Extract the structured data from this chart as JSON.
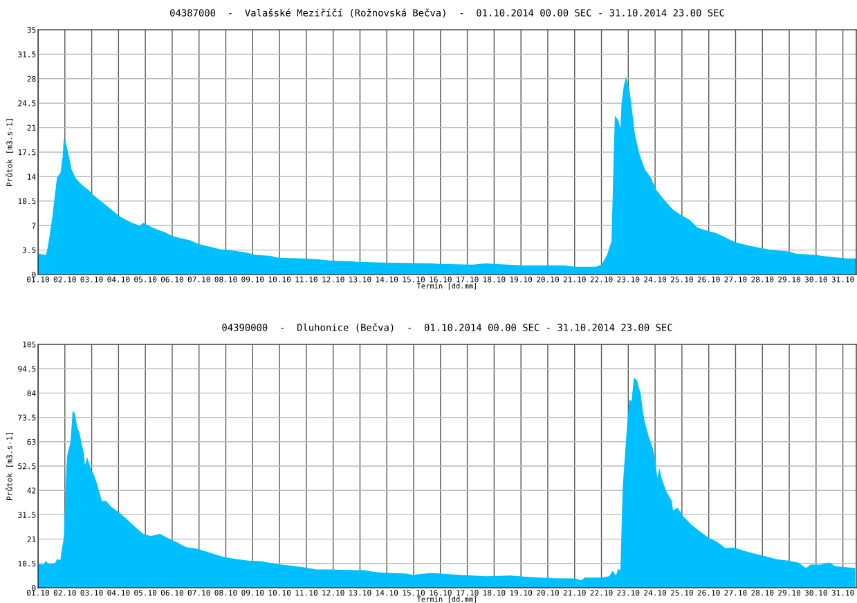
{
  "chart_data": [
    {
      "type": "area",
      "title": "04387000  -  Valašské Meziříčí (Rožnovská Bečva)  -  01.10.2014 00.00 SEC - 31.10.2014 23.00 SEC",
      "xlabel": "Termín [dd.mm]",
      "ylabel": "Průtok [m3.s-1]",
      "grid": true,
      "xlim": [
        "2014-10-01T00:00",
        "2014-10-31T12:00"
      ],
      "ylim": [
        0,
        35
      ],
      "yticks": [
        0,
        3.5,
        7,
        10.5,
        14,
        17.5,
        21,
        24.5,
        28,
        31.5,
        35
      ],
      "xticks": [
        {
          "value": "2014-10-01",
          "label": "01.10"
        },
        {
          "value": "2014-10-02",
          "label": "02.10"
        },
        {
          "value": "2014-10-03",
          "label": "03.10"
        },
        {
          "value": "2014-10-04",
          "label": "04.10"
        },
        {
          "value": "2014-10-05",
          "label": "05.10"
        },
        {
          "value": "2014-10-06",
          "label": "06.10"
        },
        {
          "value": "2014-10-07",
          "label": "07.10"
        },
        {
          "value": "2014-10-08",
          "label": "08.10"
        },
        {
          "value": "2014-10-09",
          "label": "09.10"
        },
        {
          "value": "2014-10-10",
          "label": "10.10"
        },
        {
          "value": "2014-10-11",
          "label": "11.10"
        },
        {
          "value": "2014-10-12",
          "label": "12.10"
        },
        {
          "value": "2014-10-13",
          "label": "13.10"
        },
        {
          "value": "2014-10-14",
          "label": "14.10"
        },
        {
          "value": "2014-10-15",
          "label": "15.10"
        },
        {
          "value": "2014-10-16",
          "label": "16.10"
        },
        {
          "value": "2014-10-17",
          "label": "17.10"
        },
        {
          "value": "2014-10-18",
          "label": "18.10"
        },
        {
          "value": "2014-10-19",
          "label": "19.10"
        },
        {
          "value": "2014-10-20",
          "label": "20.10"
        },
        {
          "value": "2014-10-21",
          "label": "21.10"
        },
        {
          "value": "2014-10-22",
          "label": "22.10"
        },
        {
          "value": "2014-10-23",
          "label": "23.10"
        },
        {
          "value": "2014-10-24",
          "label": "24.10"
        },
        {
          "value": "2014-10-25",
          "label": "25.10"
        },
        {
          "value": "2014-10-26",
          "label": "26.10"
        },
        {
          "value": "2014-10-27",
          "label": "27.10"
        },
        {
          "value": "2014-10-28",
          "label": "28.10"
        },
        {
          "value": "2014-10-29",
          "label": "29.10"
        },
        {
          "value": "2014-10-30",
          "label": "30.10"
        },
        {
          "value": "2014-10-31",
          "label": "31.10"
        }
      ],
      "series": [
        {
          "color": "#00bfff",
          "x": [
            "2014-10-01T00:00",
            "2014-10-01T07:00",
            "2014-10-01T08:00",
            "2014-10-01T10:00",
            "2014-10-01T13:00",
            "2014-10-01T15:00",
            "2014-10-01T17:00",
            "2014-10-01T20:00",
            "2014-10-01T22:00",
            "2014-10-01T23:00",
            "2014-10-02T01:00",
            "2014-10-02T04:00",
            "2014-10-02T06:00",
            "2014-10-02T10:00",
            "2014-10-02T16:00",
            "2014-10-02T21:00",
            "2014-10-03T02:00",
            "2014-10-03T09:00",
            "2014-10-03T19:00",
            "2014-10-04T02:00",
            "2014-10-04T12:00",
            "2014-10-04T19:00",
            "2014-10-04T22:00",
            "2014-10-05T08:00",
            "2014-10-05T18:00",
            "2014-10-06T00:00",
            "2014-10-06T08:00",
            "2014-10-06T16:00",
            "2014-10-06T23:00",
            "2014-10-07T09:00",
            "2014-10-07T19:00",
            "2014-10-08T07:00",
            "2014-10-08T17:00",
            "2014-10-09T03:00",
            "2014-10-09T15:00",
            "2014-10-09T23:00",
            "2014-10-10T21:00",
            "2014-10-11T09:00",
            "2014-10-11T21:00",
            "2014-10-12T17:00",
            "2014-10-12T22:00",
            "2014-10-13T22:00",
            "2014-10-15T16:00",
            "2014-10-16T00:00",
            "2014-10-17T05:00",
            "2014-10-17T17:00",
            "2014-10-18T00:00",
            "2014-10-19T01:00",
            "2014-10-20T14:00",
            "2014-10-21T00:00",
            "2014-10-21T19:00",
            "2014-10-22T00:00",
            "2014-10-22T05:00",
            "2014-10-22T09:00",
            "2014-10-22T11:00",
            "2014-10-22T12:00",
            "2014-10-22T15:00",
            "2014-10-22T17:00",
            "2014-10-22T18:00",
            "2014-10-22T20:00",
            "2014-10-22T22:00",
            "2014-10-22T23:00",
            "2014-10-23T01:00",
            "2014-10-23T03:00",
            "2014-10-23T06:00",
            "2014-10-23T10:00",
            "2014-10-23T15:00",
            "2014-10-23T20:00",
            "2014-10-24T01:00",
            "2014-10-24T08:00",
            "2014-10-24T16:00",
            "2014-10-24T23:00",
            "2014-10-25T07:00",
            "2014-10-25T14:00",
            "2014-10-26T00:00",
            "2014-10-26T07:00",
            "2014-10-26T15:00",
            "2014-10-27T00:00",
            "2014-10-27T13:00",
            "2014-10-27T22:00",
            "2014-10-28T08:00",
            "2014-10-28T23:00",
            "2014-10-29T06:00",
            "2014-10-30T00:00",
            "2014-10-30T09:00",
            "2014-10-31T03:00",
            "2014-10-31T12:00"
          ],
          "values": [
            3.0,
            2.8,
            3.4,
            5.2,
            8.5,
            11.3,
            13.9,
            14.5,
            16.8,
            19.4,
            18.8,
            16.6,
            15.0,
            13.7,
            12.7,
            12.1,
            11.3,
            10.4,
            9.1,
            8.2,
            7.4,
            7.0,
            7.4,
            6.6,
            6.0,
            5.5,
            5.2,
            4.9,
            4.4,
            4.0,
            3.6,
            3.4,
            3.2,
            2.8,
            2.7,
            2.4,
            2.3,
            2.2,
            2.0,
            1.9,
            1.8,
            1.7,
            1.6,
            1.5,
            1.4,
            1.6,
            1.5,
            1.3,
            1.3,
            1.1,
            1.1,
            1.4,
            2.8,
            4.8,
            17.0,
            22.7,
            22.1,
            20.9,
            24.5,
            27.0,
            28.3,
            27.6,
            26.5,
            23.9,
            20.0,
            17.2,
            15.0,
            13.9,
            12.1,
            10.7,
            9.3,
            8.5,
            7.8,
            6.7,
            6.2,
            5.9,
            5.3,
            4.6,
            4.1,
            3.8,
            3.5,
            3.3,
            3.0,
            2.8,
            2.6,
            2.3,
            2.3
          ]
        }
      ]
    },
    {
      "type": "area",
      "title": "04390000  -  Dluhonice (Bečva)  -  01.10.2014 00.00 SEC - 31.10.2014 23.00 SEC",
      "xlabel": "Termín [dd.mm]",
      "ylabel": "Průtok [m3.s-1]",
      "grid": true,
      "xlim": [
        "2014-10-01T00:00",
        "2014-10-31T12:00"
      ],
      "ylim": [
        0,
        105
      ],
      "yticks": [
        0,
        10.5,
        21,
        31.5,
        42,
        52.5,
        63,
        73.5,
        84,
        94.5,
        105
      ],
      "xticks": [
        {
          "value": "2014-10-01",
          "label": "01.10"
        },
        {
          "value": "2014-10-02",
          "label": "02.10"
        },
        {
          "value": "2014-10-03",
          "label": "03.10"
        },
        {
          "value": "2014-10-04",
          "label": "04.10"
        },
        {
          "value": "2014-10-05",
          "label": "05.10"
        },
        {
          "value": "2014-10-06",
          "label": "06.10"
        },
        {
          "value": "2014-10-07",
          "label": "07.10"
        },
        {
          "value": "2014-10-08",
          "label": "08.10"
        },
        {
          "value": "2014-10-09",
          "label": "09.10"
        },
        {
          "value": "2014-10-10",
          "label": "10.10"
        },
        {
          "value": "2014-10-11",
          "label": "11.10"
        },
        {
          "value": "2014-10-12",
          "label": "12.10"
        },
        {
          "value": "2014-10-13",
          "label": "13.10"
        },
        {
          "value": "2014-10-14",
          "label": "14.10"
        },
        {
          "value": "2014-10-15",
          "label": "15.10"
        },
        {
          "value": "2014-10-16",
          "label": "16.10"
        },
        {
          "value": "2014-10-17",
          "label": "17.10"
        },
        {
          "value": "2014-10-18",
          "label": "18.10"
        },
        {
          "value": "2014-10-19",
          "label": "19.10"
        },
        {
          "value": "2014-10-20",
          "label": "20.10"
        },
        {
          "value": "2014-10-21",
          "label": "21.10"
        },
        {
          "value": "2014-10-22",
          "label": "22.10"
        },
        {
          "value": "2014-10-23",
          "label": "23.10"
        },
        {
          "value": "2014-10-24",
          "label": "24.10"
        },
        {
          "value": "2014-10-25",
          "label": "25.10"
        },
        {
          "value": "2014-10-26",
          "label": "26.10"
        },
        {
          "value": "2014-10-27",
          "label": "27.10"
        },
        {
          "value": "2014-10-28",
          "label": "28.10"
        },
        {
          "value": "2014-10-29",
          "label": "29.10"
        },
        {
          "value": "2014-10-30",
          "label": "30.10"
        },
        {
          "value": "2014-10-31",
          "label": "31.10"
        }
      ],
      "series": [
        {
          "color": "#00bfff",
          "x": [
            "2014-10-01T00:00",
            "2014-10-01T05:00",
            "2014-10-01T07:00",
            "2014-10-01T09:00",
            "2014-10-01T15:00",
            "2014-10-01T17:00",
            "2014-10-01T20:00",
            "2014-10-01T21:00",
            "2014-10-01T23:00",
            "2014-10-02T01:00",
            "2014-10-02T02:00",
            "2014-10-02T05:00",
            "2014-10-02T07:00",
            "2014-10-02T09:00",
            "2014-10-02T11:00",
            "2014-10-02T13:00",
            "2014-10-02T15:00",
            "2014-10-02T17:00",
            "2014-10-02T18:00",
            "2014-10-02T20:00",
            "2014-10-02T23:00",
            "2014-10-03T02:00",
            "2014-10-03T05:00",
            "2014-10-03T09:00",
            "2014-10-03T13:00",
            "2014-10-03T17:00",
            "2014-10-04T00:00",
            "2014-10-04T07:00",
            "2014-10-04T15:00",
            "2014-10-04T22:00",
            "2014-10-05T05:00",
            "2014-10-05T13:00",
            "2014-10-05T20:00",
            "2014-10-06T04:00",
            "2014-10-06T12:00",
            "2014-10-06T23:00",
            "2014-10-07T12:00",
            "2014-10-07T23:00",
            "2014-10-08T10:00",
            "2014-10-08T20:00",
            "2014-10-09T08:00",
            "2014-10-09T20:00",
            "2014-10-10T08:00",
            "2014-10-10T21:00",
            "2014-10-11T09:00",
            "2014-10-11T21:00",
            "2014-10-12T12:00",
            "2014-10-13T03:00",
            "2014-10-13T15:00",
            "2014-10-13T23:00",
            "2014-10-14T18:00",
            "2014-10-14T23:00",
            "2014-10-15T16:00",
            "2014-10-16T16:00",
            "2014-10-17T17:00",
            "2014-10-18T15:00",
            "2014-10-19T06:00",
            "2014-10-20T06:00",
            "2014-10-21T00:00",
            "2014-10-21T06:00",
            "2014-10-21T09:00",
            "2014-10-22T00:00",
            "2014-10-22T07:00",
            "2014-10-22T10:00",
            "2014-10-22T13:00",
            "2014-10-22T15:00",
            "2014-10-22T17:00",
            "2014-10-22T19:00",
            "2014-10-22T21:00",
            "2014-10-22T23:00",
            "2014-10-23T01:00",
            "2014-10-23T03:00",
            "2014-10-23T05:00",
            "2014-10-23T08:00",
            "2014-10-23T09:00",
            "2014-10-23T11:00",
            "2014-10-23T13:00",
            "2014-10-23T15:00",
            "2014-10-23T18:00",
            "2014-10-23T22:00",
            "2014-10-24T00:00",
            "2014-10-24T02:00",
            "2014-10-24T04:00",
            "2014-10-24T06:00",
            "2014-10-24T10:00",
            "2014-10-24T15:00",
            "2014-10-24T16:00",
            "2014-10-24T20:00",
            "2014-10-25T02:00",
            "2014-10-25T09:00",
            "2014-10-25T16:00",
            "2014-10-26T00:00",
            "2014-10-26T07:00",
            "2014-10-26T15:00",
            "2014-10-26T22:00",
            "2014-10-27T08:00",
            "2014-10-27T18:00",
            "2014-10-28T03:00",
            "2014-10-28T13:00",
            "2014-10-28T23:00",
            "2014-10-29T08:00",
            "2014-10-29T15:00",
            "2014-10-29T19:00",
            "2014-10-30T04:00",
            "2014-10-30T12:00",
            "2014-10-30T17:00",
            "2014-10-31T03:00",
            "2014-10-31T11:00"
          ],
          "values": [
            10.3,
            10.0,
            11.7,
            10.3,
            10.5,
            12.3,
            12.0,
            15.6,
            21.5,
            47.5,
            56.9,
            62.8,
            76.4,
            75.2,
            69.3,
            67.0,
            62.2,
            58.1,
            52.8,
            56.3,
            51.6,
            48.7,
            44.5,
            37.4,
            37.4,
            35.1,
            32.7,
            29.8,
            26.2,
            23.3,
            22.3,
            23.3,
            21.5,
            19.7,
            17.6,
            16.8,
            14.8,
            13.2,
            12.4,
            11.7,
            11.5,
            10.3,
            9.7,
            8.9,
            7.9,
            7.9,
            7.7,
            7.6,
            6.7,
            6.5,
            6.1,
            5.6,
            6.4,
            5.6,
            5.0,
            5.3,
            4.7,
            4.1,
            4.0,
            3.2,
            4.4,
            4.4,
            5.0,
            7.3,
            5.3,
            8.1,
            7.6,
            43.3,
            56.9,
            70.5,
            81.1,
            80.5,
            90.6,
            89.4,
            87.0,
            84.1,
            76.4,
            71.1,
            65.8,
            59.9,
            55.2,
            47.5,
            51.6,
            46.9,
            41.6,
            37.4,
            33.3,
            34.5,
            30.4,
            27.0,
            24.4,
            21.5,
            20.0,
            17.1,
            17.4,
            15.9,
            14.6,
            13.6,
            12.3,
            11.7,
            10.9,
            8.5,
            10.0,
            10.0,
            10.9,
            9.3,
            8.9,
            8.5
          ]
        }
      ]
    }
  ]
}
